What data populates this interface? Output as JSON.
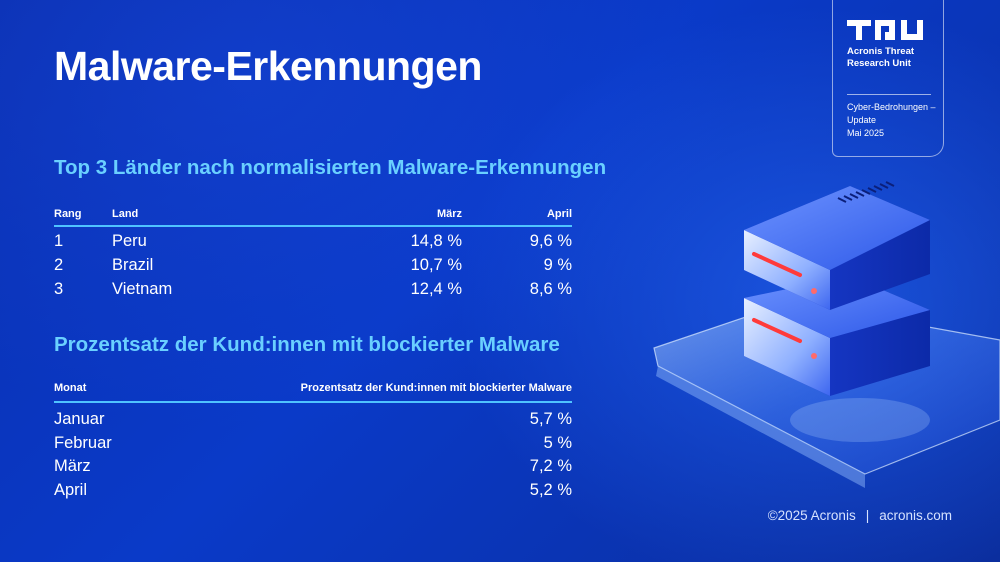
{
  "title": "Malware-Erkennungen",
  "badge": {
    "logo": "tru-logo",
    "name": "Acronis Threat Research Unit",
    "subtitle": "Cyber-Bedrohungen – Update",
    "date": "Mai 2025"
  },
  "countries": {
    "heading": "Top 3 Länder nach normalisierten Malware-Erkennungen",
    "columns": {
      "rank": "Rang",
      "country": "Land",
      "march": "März",
      "april": "April"
    },
    "rows": [
      {
        "rank": "1",
        "country": "Peru",
        "march": "14,8 %",
        "april": "9,6 %"
      },
      {
        "rank": "2",
        "country": "Brazil",
        "march": "10,7 %",
        "april": "9 %"
      },
      {
        "rank": "3",
        "country": "Vietnam",
        "march": "12,4 %",
        "april": "8,6 %"
      }
    ]
  },
  "customers": {
    "heading": "Prozentsatz der Kund:innen mit blockierter Malware",
    "columns": {
      "month": "Monat",
      "percent": "Prozentsatz der Kund:innen mit blockierter Malware"
    },
    "rows": [
      {
        "month": "Januar",
        "percent": "5,7 %"
      },
      {
        "month": "Februar",
        "percent": "5 %"
      },
      {
        "month": "März",
        "percent": "7,2 %"
      },
      {
        "month": "April",
        "percent": "5,2 %"
      }
    ]
  },
  "footer": {
    "copyright": "©2025 Acronis",
    "separator": "|",
    "website": "acronis.com"
  },
  "colors": {
    "accent": "#6ad0ff",
    "rule": "#4fc3ff",
    "background": "#0a36c0",
    "server_led": "#ff3a3a"
  }
}
